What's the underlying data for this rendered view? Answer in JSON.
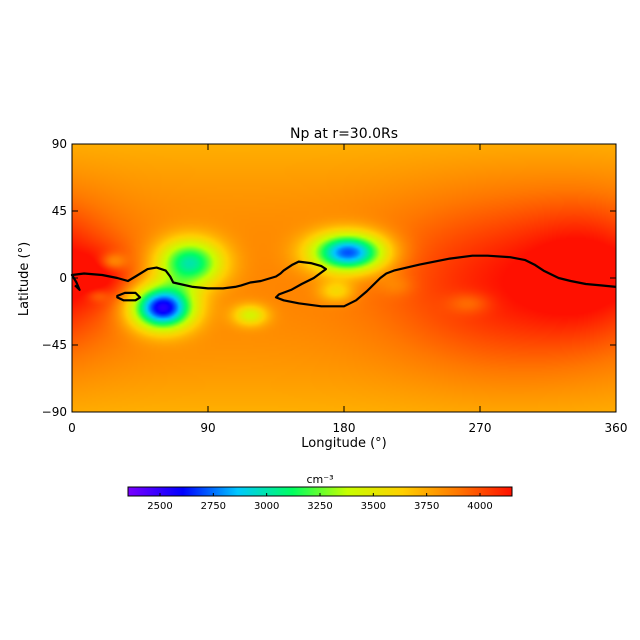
{
  "chart_data": {
    "type": "heatmap",
    "title": "Np at r=30.0Rs",
    "xlabel": "Longitude (°)",
    "ylabel": "Latitude (°)",
    "xlim": [
      0,
      360
    ],
    "ylim": [
      -90,
      90
    ],
    "x_ticks": [
      {
        "value": 0,
        "label": "0"
      },
      {
        "value": 90,
        "label": "90"
      },
      {
        "value": 180,
        "label": "180"
      },
      {
        "value": 270,
        "label": "270"
      },
      {
        "value": 360,
        "label": "360"
      }
    ],
    "y_ticks": [
      {
        "value": 90,
        "label": "90"
      },
      {
        "value": 45,
        "label": "45"
      },
      {
        "value": 0,
        "label": "0"
      },
      {
        "value": -45,
        "label": "−45"
      },
      {
        "value": -90,
        "label": "−90"
      }
    ],
    "colorbar": {
      "unit": "cm⁻³",
      "range": [
        2350,
        4150
      ],
      "ticks": [
        {
          "value": 2500,
          "label": "2500"
        },
        {
          "value": 2750,
          "label": "2750"
        },
        {
          "value": 3000,
          "label": "3000"
        },
        {
          "value": 3250,
          "label": "3250"
        },
        {
          "value": 3500,
          "label": "3500"
        },
        {
          "value": 3750,
          "label": "3750"
        },
        {
          "value": 4000,
          "label": "4000"
        }
      ],
      "colors": [
        "#7a00ff",
        "#0000ff",
        "#00c8ff",
        "#00ff60",
        "#c8ff00",
        "#ffd000",
        "#ff7800",
        "#ff1000"
      ]
    },
    "background_value": 3850,
    "features": [
      {
        "lon": 290,
        "lat": -5,
        "value": 4120,
        "spread_lon": 55,
        "spread_lat": 40,
        "kind": "high"
      },
      {
        "lon": 345,
        "lat": 5,
        "value": 4080,
        "spread_lon": 30,
        "spread_lat": 30,
        "kind": "high"
      },
      {
        "lon": 20,
        "lat": 2,
        "value": 4020,
        "spread_lon": 14,
        "spread_lat": 12,
        "kind": "high"
      },
      {
        "lon": 60,
        "lat": -20,
        "value": 2520,
        "spread_lon": 14,
        "spread_lat": 10,
        "kind": "low"
      },
      {
        "lon": 78,
        "lat": 10,
        "value": 3000,
        "spread_lon": 15,
        "spread_lat": 11,
        "kind": "low"
      },
      {
        "lon": 183,
        "lat": 17,
        "value": 2680,
        "spread_lon": 17,
        "spread_lat": 9,
        "kind": "low"
      },
      {
        "lon": 118,
        "lat": -25,
        "value": 3450,
        "spread_lon": 8,
        "spread_lat": 5,
        "kind": "low"
      },
      {
        "lon": 27,
        "lat": 11,
        "value": 3620,
        "spread_lon": 6,
        "spread_lat": 4,
        "kind": "low"
      },
      {
        "lon": 175,
        "lat": -9,
        "value": 3580,
        "spread_lon": 8,
        "spread_lat": 5,
        "kind": "low"
      },
      {
        "lon": 263,
        "lat": -17,
        "value": 3700,
        "spread_lon": 10,
        "spread_lat": 5,
        "kind": "low"
      },
      {
        "lon": 17,
        "lat": -12,
        "value": 3720,
        "spread_lon": 5,
        "spread_lat": 3,
        "kind": "low"
      },
      {
        "lon": 215,
        "lat": -5,
        "value": 3760,
        "spread_lon": 8,
        "spread_lat": 5,
        "kind": "low"
      }
    ],
    "neutral_line": [
      [
        2,
        -5
      ],
      [
        5,
        -8
      ],
      [
        3,
        -3
      ],
      [
        0,
        2
      ],
      [
        8,
        3
      ],
      [
        20,
        2
      ],
      [
        30,
        0
      ],
      [
        37,
        -2
      ],
      [
        42,
        1
      ],
      [
        50,
        6
      ],
      [
        56,
        7
      ],
      [
        62,
        5
      ],
      [
        65,
        1
      ],
      [
        67,
        -3
      ],
      [
        80,
        -6
      ],
      [
        90,
        -7
      ],
      [
        100,
        -7
      ],
      [
        108,
        -6
      ],
      [
        112,
        -5
      ],
      [
        118,
        -3
      ],
      [
        125,
        -2
      ],
      [
        135,
        1
      ],
      [
        138,
        3
      ],
      [
        140,
        5
      ],
      [
        146,
        9
      ],
      [
        150,
        11
      ],
      [
        158,
        10
      ],
      [
        165,
        8
      ],
      [
        168,
        6
      ],
      [
        160,
        0
      ],
      [
        152,
        -4
      ],
      [
        145,
        -8
      ],
      [
        137,
        -11
      ],
      [
        135,
        -13
      ],
      [
        140,
        -15
      ],
      [
        150,
        -17
      ],
      [
        165,
        -19
      ],
      [
        180,
        -19
      ],
      [
        188,
        -15
      ],
      [
        195,
        -9
      ],
      [
        200,
        -4
      ],
      [
        204,
        0
      ],
      [
        208,
        3
      ],
      [
        213,
        5
      ],
      [
        230,
        9
      ],
      [
        250,
        13
      ],
      [
        265,
        15
      ],
      [
        275,
        15
      ],
      [
        290,
        14
      ],
      [
        300,
        12
      ],
      [
        306,
        9
      ],
      [
        312,
        5
      ],
      [
        322,
        0
      ],
      [
        330,
        -2
      ],
      [
        340,
        -4
      ],
      [
        350,
        -5
      ],
      [
        360,
        -6
      ]
    ],
    "neutral_line_loop": [
      [
        30,
        -12
      ],
      [
        35,
        -10
      ],
      [
        42,
        -10
      ],
      [
        45,
        -13
      ],
      [
        42,
        -15
      ],
      [
        34,
        -15
      ],
      [
        30,
        -13
      ]
    ]
  }
}
